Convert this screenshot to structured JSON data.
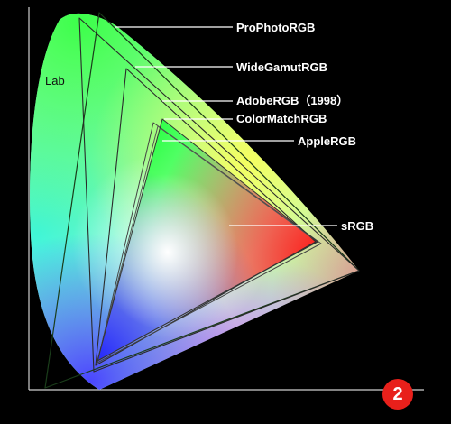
{
  "figure": {
    "region_labels": {
      "lab": "Lab"
    },
    "gamut_labels": [
      {
        "id": "prophoto",
        "text": "ProPhotoRGB"
      },
      {
        "id": "widegamut",
        "text": "WideGamutRGB"
      },
      {
        "id": "adobe",
        "text": "AdobeRGB（1998）"
      },
      {
        "id": "colormatch",
        "text": "ColorMatchRGB"
      },
      {
        "id": "apple",
        "text": "AppleRGB"
      },
      {
        "id": "srgb",
        "text": "sRGB"
      }
    ],
    "figure_number": "2",
    "colors": {
      "background": "#000000",
      "badge": "#e8201b",
      "axis": "#cccccc",
      "label_text": "#ffffff"
    }
  }
}
